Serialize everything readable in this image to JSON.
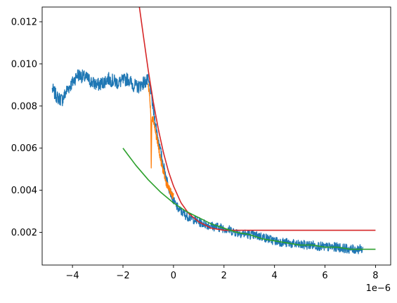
{
  "chart_data": {
    "type": "line",
    "title": "",
    "xlabel": "",
    "ylabel": "",
    "x_offset_label": "1e−6",
    "xlim": [
      -5.2e-06,
      8.6e-06
    ],
    "ylim": [
      0.00045,
      0.0127
    ],
    "x_ticks": [
      -4e-06,
      -2e-06,
      0,
      2e-06,
      4e-06,
      6e-06,
      8e-06
    ],
    "x_tick_labels": [
      "−4",
      "−2",
      "0",
      "2",
      "4",
      "6",
      "8"
    ],
    "y_ticks": [
      0.002,
      0.004,
      0.006,
      0.008,
      0.01,
      0.012
    ],
    "y_tick_labels": [
      "0.002",
      "0.004",
      "0.006",
      "0.008",
      "0.010",
      "0.012"
    ],
    "grid": false,
    "legend": "none",
    "series": [
      {
        "color": "#1f77b4",
        "style": "noisy-line",
        "x": [
          -4.8e-06,
          -4.6e-06,
          -4.4e-06,
          -4.2e-06,
          -4e-06,
          -3.8e-06,
          -3.6e-06,
          -3.4e-06,
          -3.2e-06,
          -3e-06,
          -2.8e-06,
          -2.6e-06,
          -2.4e-06,
          -2.2e-06,
          -2e-06,
          -1.8e-06,
          -1.6e-06,
          -1.4e-06,
          -1.2e-06,
          -1e-06,
          -9e-07,
          -8e-07,
          -6e-07,
          -4e-07,
          -2e-07,
          0.0,
          2e-07,
          5e-07,
          1e-06,
          1.5e-06,
          2e-06,
          2.5e-06,
          3e-06,
          3.5e-06,
          4e-06,
          4.5e-06,
          5e-06,
          5.5e-06,
          6e-06,
          6.5e-06,
          7e-06,
          7.5e-06
        ],
        "y": [
          0.0088,
          0.0084,
          0.0083,
          0.0088,
          0.0091,
          0.0095,
          0.0094,
          0.0093,
          0.0091,
          0.009,
          0.0091,
          0.0093,
          0.0092,
          0.0091,
          0.0092,
          0.0093,
          0.009,
          0.0089,
          0.0091,
          0.0092,
          0.0087,
          0.0078,
          0.0064,
          0.0052,
          0.0042,
          0.0035,
          0.0031,
          0.0028,
          0.0025,
          0.0023,
          0.0022,
          0.002,
          0.0019,
          0.0018,
          0.0016,
          0.0015,
          0.0014,
          0.0014,
          0.0013,
          0.0013,
          0.0012,
          0.0012
        ]
      },
      {
        "color": "#ff7f0e",
        "style": "noisy-line",
        "x": [
          -1e-06,
          -9.5e-07,
          -9e-07,
          -8.8e-07,
          -8.6e-07,
          -8e-07,
          -7e-07,
          -6e-07,
          -5e-07,
          -4e-07,
          -3e-07,
          -2e-07,
          -1e-07,
          0.0
        ],
        "y": [
          0.009,
          0.0086,
          0.0076,
          0.0048,
          0.0075,
          0.0074,
          0.0067,
          0.0061,
          0.0054,
          0.0049,
          0.0044,
          0.0041,
          0.0039,
          0.0037
        ]
      },
      {
        "color": "#d62728",
        "style": "smooth-line",
        "x": [
          -1.35e-06,
          -1.2e-06,
          -1e-06,
          -8e-07,
          -6e-07,
          -4e-07,
          -2e-07,
          0.0,
          3e-07,
          6e-07,
          1e-06,
          1.5e-06,
          2e-06,
          3e-06,
          4e-06,
          5e-06,
          6e-06,
          7e-06,
          8e-06
        ],
        "y": [
          0.0127,
          0.0114,
          0.0097,
          0.0082,
          0.0069,
          0.0058,
          0.0049,
          0.0042,
          0.0034,
          0.0029,
          0.0025,
          0.0022,
          0.0021,
          0.0021,
          0.0021,
          0.0021,
          0.0021,
          0.0021,
          0.0021
        ]
      },
      {
        "color": "#2ca02c",
        "style": "smooth-line",
        "x": [
          -2e-06,
          -1.5e-06,
          -1e-06,
          -5e-07,
          0.0,
          5e-07,
          1e-06,
          1.5e-06,
          2e-06,
          2.5e-06,
          3e-06,
          3.5e-06,
          4e-06,
          4.5e-06,
          5e-06,
          5.5e-06,
          6e-06,
          6.5e-06,
          7e-06,
          7.5e-06,
          8e-06
        ],
        "y": [
          0.006,
          0.0052,
          0.0045,
          0.0039,
          0.0034,
          0.003,
          0.0027,
          0.0024,
          0.0022,
          0.002,
          0.0019,
          0.0017,
          0.0016,
          0.0015,
          0.0014,
          0.0014,
          0.0013,
          0.0013,
          0.0012,
          0.0012,
          0.0012
        ]
      }
    ]
  }
}
